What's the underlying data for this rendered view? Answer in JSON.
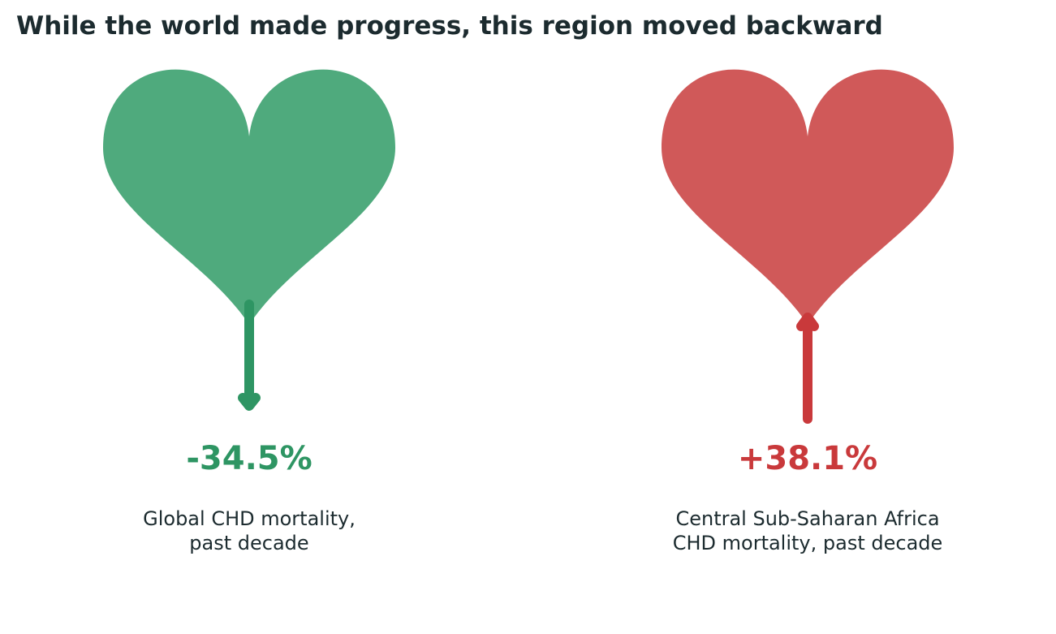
{
  "title": "While the world made progress, this region moved backward",
  "colors": {
    "decrease_fill": "#4faa7d",
    "decrease_arrow": "#2e9563",
    "increase_fill": "#d05959",
    "increase_arrow": "#c9393b",
    "text": "#1c2b2f"
  },
  "chart_data": {
    "type": "pictogram",
    "title": "While the world made progress, this region moved backward",
    "unit": "%",
    "items": [
      {
        "label_lines": [
          "Global CHD mortality,",
          "past decade"
        ],
        "value": -34.5,
        "value_label": "-34.5%",
        "direction": "down",
        "icon": "heart-icon",
        "color": "#4faa7d"
      },
      {
        "label_lines": [
          "Central Sub-Saharan Africa",
          "CHD mortality, past decade"
        ],
        "value": 38.1,
        "value_label": "+38.1%",
        "direction": "up",
        "icon": "heart-icon",
        "color": "#d05959"
      }
    ]
  }
}
